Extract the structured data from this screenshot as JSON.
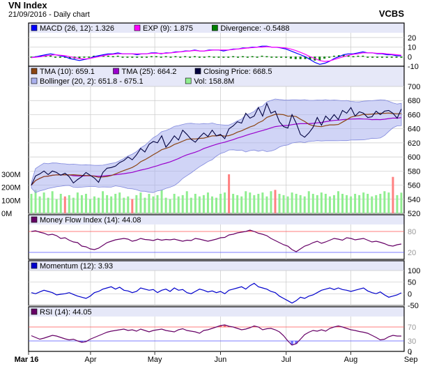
{
  "header": {
    "title": "VN Index",
    "subtitle": "21/09/2016 - Daily chart",
    "brand": "VCBS"
  },
  "colors": {
    "panel_bg": "#ffffff",
    "legend_bg": "#e6e8f8",
    "grid": "#c8c8c8",
    "macd": "#0000ff",
    "exp": "#ff00ff",
    "divergence": "#008000",
    "tma10": "#8b4513",
    "tma25": "#9900cc",
    "price": "#000040",
    "band": "#aab0ee",
    "band_line": "#8088dd",
    "volume": "#90ee90",
    "volume_alt": "#ff8080",
    "mfi": "#660066",
    "momentum": "#0000cc",
    "rsi": "#660066",
    "over": "#ff5050",
    "under": "#5050ff"
  },
  "chart_data": [
    {
      "type": "line",
      "name": "macd",
      "legend": [
        {
          "label": "MACD (26, 12): 1.326",
          "swatch": "macd"
        },
        {
          "label": "EXP (9): 1.875",
          "swatch": "exp"
        },
        {
          "label": "Divergence: -0.5488",
          "swatch": "divergence"
        }
      ],
      "yticks": [
        "20",
        "10",
        "0",
        "-10"
      ],
      "ylim": [
        -10,
        25
      ],
      "series": {
        "macd": [
          -1,
          0,
          1,
          2,
          3,
          2,
          1,
          0,
          -2,
          -3,
          -4,
          -3,
          -2,
          0,
          1,
          2,
          3,
          3,
          4,
          3,
          3,
          3,
          2,
          3,
          3,
          4,
          4,
          3,
          4,
          4,
          5,
          5,
          6,
          6,
          7,
          6,
          6,
          7,
          7,
          7,
          6,
          7,
          8,
          8,
          9,
          9,
          10,
          10,
          11,
          11,
          10,
          10,
          9,
          8,
          6,
          4,
          2,
          0,
          -3,
          -6,
          -8,
          -7,
          -5,
          -2,
          0,
          2,
          3,
          3,
          4,
          5,
          4,
          4,
          3,
          3,
          2,
          2,
          1,
          1
        ],
        "exp": [
          -1,
          -0.5,
          0,
          1,
          1.5,
          2,
          1.5,
          1,
          0,
          -1,
          -2,
          -2.5,
          -2,
          -1,
          0,
          1,
          2,
          2.5,
          3,
          3,
          3,
          3,
          3,
          3,
          3,
          3.5,
          3.5,
          3.5,
          3.5,
          4,
          4.5,
          5,
          5.5,
          6,
          6.5,
          6,
          6,
          6.5,
          7,
          7,
          7,
          7,
          7.5,
          8,
          8.5,
          9,
          9.5,
          10,
          10,
          10.5,
          10,
          10,
          9.5,
          9,
          8,
          6.5,
          4.5,
          2.5,
          0,
          -2,
          -4,
          -5,
          -4.5,
          -3,
          -1.5,
          0,
          1.5,
          2.5,
          3,
          4,
          4,
          4,
          3.5,
          3.5,
          3,
          2.5,
          2,
          1.5
        ]
      }
    },
    {
      "type": "line",
      "name": "price",
      "legend": [
        {
          "label": "TMA (10): 659.1",
          "swatch": "tma10"
        },
        {
          "label": "TMA (25): 664.2",
          "swatch": "tma25"
        },
        {
          "label": "Closing Price: 668.5",
          "swatch": "price"
        },
        {
          "label": "Bollinger (20, 2): 651.8 - 675.1",
          "swatch": "band"
        },
        {
          "label": "Vol: 158.8M",
          "swatch": "volume"
        }
      ],
      "yticks": [
        "700",
        "680",
        "660",
        "640",
        "620",
        "600",
        "580",
        "560",
        "540",
        "520"
      ],
      "ylim": [
        520,
        700
      ],
      "vol_ticks": [
        "300M",
        "200M",
        "100M",
        "0M"
      ],
      "vol_lim": [
        0,
        300
      ],
      "series": {
        "close": [
          560,
          573,
          576,
          580,
          575,
          580,
          578,
          574,
          577,
          572,
          563,
          568,
          572,
          578,
          574,
          570,
          564,
          578,
          584,
          585,
          587,
          592,
          595,
          600,
          596,
          603,
          612,
          607,
          618,
          622,
          620,
          630,
          614,
          621,
          630,
          624,
          638,
          632,
          625,
          621,
          628,
          634,
          629,
          638,
          630,
          632,
          626,
          640,
          644,
          650,
          648,
          662,
          655,
          658,
          670,
          658,
          676,
          662,
          665,
          650,
          643,
          641,
          660,
          648,
          632,
          628,
          634,
          642,
          656,
          645,
          658,
          652,
          660,
          653,
          666,
          662,
          670,
          658,
          664,
          662,
          656,
          657,
          665,
          660,
          665,
          666,
          662,
          655,
          668
        ],
        "volume": [
          150,
          180,
          130,
          160,
          120,
          170,
          110,
          150,
          130,
          140,
          120,
          160,
          140,
          150,
          110,
          130,
          120,
          170,
          140,
          130,
          150,
          160,
          120,
          130,
          110,
          140,
          160,
          120,
          150,
          130,
          140,
          180,
          120,
          110,
          150,
          130,
          140,
          170,
          120,
          150,
          130,
          140,
          160,
          130,
          120,
          150,
          160,
          300,
          150,
          140,
          130,
          170,
          160,
          140,
          150,
          160,
          130,
          170,
          180,
          150,
          140,
          130,
          160,
          150,
          140,
          130,
          170,
          150,
          140,
          160,
          150,
          130,
          140,
          170,
          150,
          140,
          130,
          150,
          140,
          160,
          150,
          130,
          140,
          150,
          170,
          160,
          280,
          140,
          159
        ],
        "volume_alt_idx": [
          8,
          24,
          47,
          58,
          86
        ]
      }
    },
    {
      "type": "line",
      "name": "mfi",
      "legend": [
        {
          "label": "Money Flow Index (14): 44.08",
          "swatch": "mfi"
        }
      ],
      "yticks": [
        "80",
        "20"
      ],
      "ylim": [
        0,
        100
      ],
      "levels": [
        80,
        20
      ],
      "values": [
        80,
        82,
        78,
        75,
        70,
        72,
        68,
        60,
        62,
        55,
        50,
        48,
        38,
        36,
        30,
        28,
        32,
        40,
        48,
        52,
        56,
        58,
        60,
        58,
        52,
        55,
        60,
        57,
        56,
        54,
        58,
        55,
        57,
        56,
        58,
        55,
        52,
        55,
        54,
        60,
        58,
        55,
        52,
        55,
        58,
        62,
        63,
        70,
        72,
        76,
        78,
        80,
        84,
        80,
        75,
        72,
        68,
        60,
        54,
        48,
        42,
        38,
        28,
        22,
        30,
        38,
        42,
        48,
        52,
        46,
        50,
        55,
        60,
        58,
        55,
        62,
        60,
        56,
        58,
        60,
        55,
        50,
        52,
        49,
        45,
        40,
        38,
        42,
        44
      ]
    },
    {
      "type": "line",
      "name": "momentum",
      "legend": [
        {
          "label": "Momentum (12): 3.93",
          "swatch": "momentum"
        }
      ],
      "yticks": [
        "100",
        "50",
        "0",
        "-50"
      ],
      "ylim": [
        -50,
        100
      ],
      "values": [
        5,
        0,
        8,
        15,
        10,
        5,
        -5,
        -2,
        0,
        5,
        -3,
        -10,
        -15,
        -20,
        -10,
        5,
        10,
        20,
        25,
        30,
        20,
        28,
        15,
        12,
        5,
        10,
        25,
        20,
        15,
        18,
        5,
        15,
        20,
        10,
        25,
        15,
        18,
        5,
        0,
        10,
        20,
        15,
        8,
        12,
        5,
        10,
        0,
        15,
        20,
        25,
        30,
        20,
        35,
        45,
        30,
        25,
        20,
        10,
        5,
        -10,
        -20,
        -30,
        -40,
        -30,
        -15,
        -20,
        -10,
        -5,
        5,
        15,
        20,
        25,
        18,
        25,
        18,
        15,
        10,
        15,
        20,
        25,
        12,
        5,
        0,
        8,
        -5,
        -15,
        -10,
        -5,
        4
      ]
    },
    {
      "type": "line",
      "name": "rsi",
      "legend": [
        {
          "label": "RSI (14): 44.05",
          "swatch": "rsi"
        }
      ],
      "yticks": [
        "70",
        "30",
        "0"
      ],
      "ylim": [
        0,
        100
      ],
      "levels": [
        70,
        30
      ],
      "values": [
        45,
        40,
        35,
        38,
        42,
        46,
        44,
        40,
        36,
        33,
        35,
        30,
        26,
        28,
        35,
        40,
        45,
        50,
        55,
        58,
        60,
        62,
        64,
        60,
        62,
        58,
        64,
        60,
        56,
        60,
        62,
        64,
        60,
        58,
        56,
        62,
        65,
        60,
        58,
        56,
        52,
        60,
        62,
        66,
        70,
        74,
        76,
        72,
        70,
        66,
        62,
        64,
        68,
        73,
        70,
        62,
        65,
        66,
        62,
        56,
        45,
        30,
        18,
        22,
        35,
        48,
        55,
        60,
        58,
        62,
        58,
        66,
        70,
        73,
        70,
        66,
        62,
        60,
        57,
        55,
        52,
        46,
        40,
        33,
        35,
        42,
        46,
        44,
        44
      ]
    }
  ],
  "x_axis": {
    "ticks": [
      {
        "label": "Mar 16",
        "bold": true,
        "frac": 0.0
      },
      {
        "label": "Apr",
        "bold": false,
        "frac": 0.165
      },
      {
        "label": "May",
        "bold": false,
        "frac": 0.336
      },
      {
        "label": "Jun",
        "bold": false,
        "frac": 0.511
      },
      {
        "label": "Jul",
        "bold": false,
        "frac": 0.686
      },
      {
        "label": "Aug",
        "bold": false,
        "frac": 0.858
      },
      {
        "label": "Sep",
        "bold": false,
        "frac": 1.018
      }
    ]
  }
}
